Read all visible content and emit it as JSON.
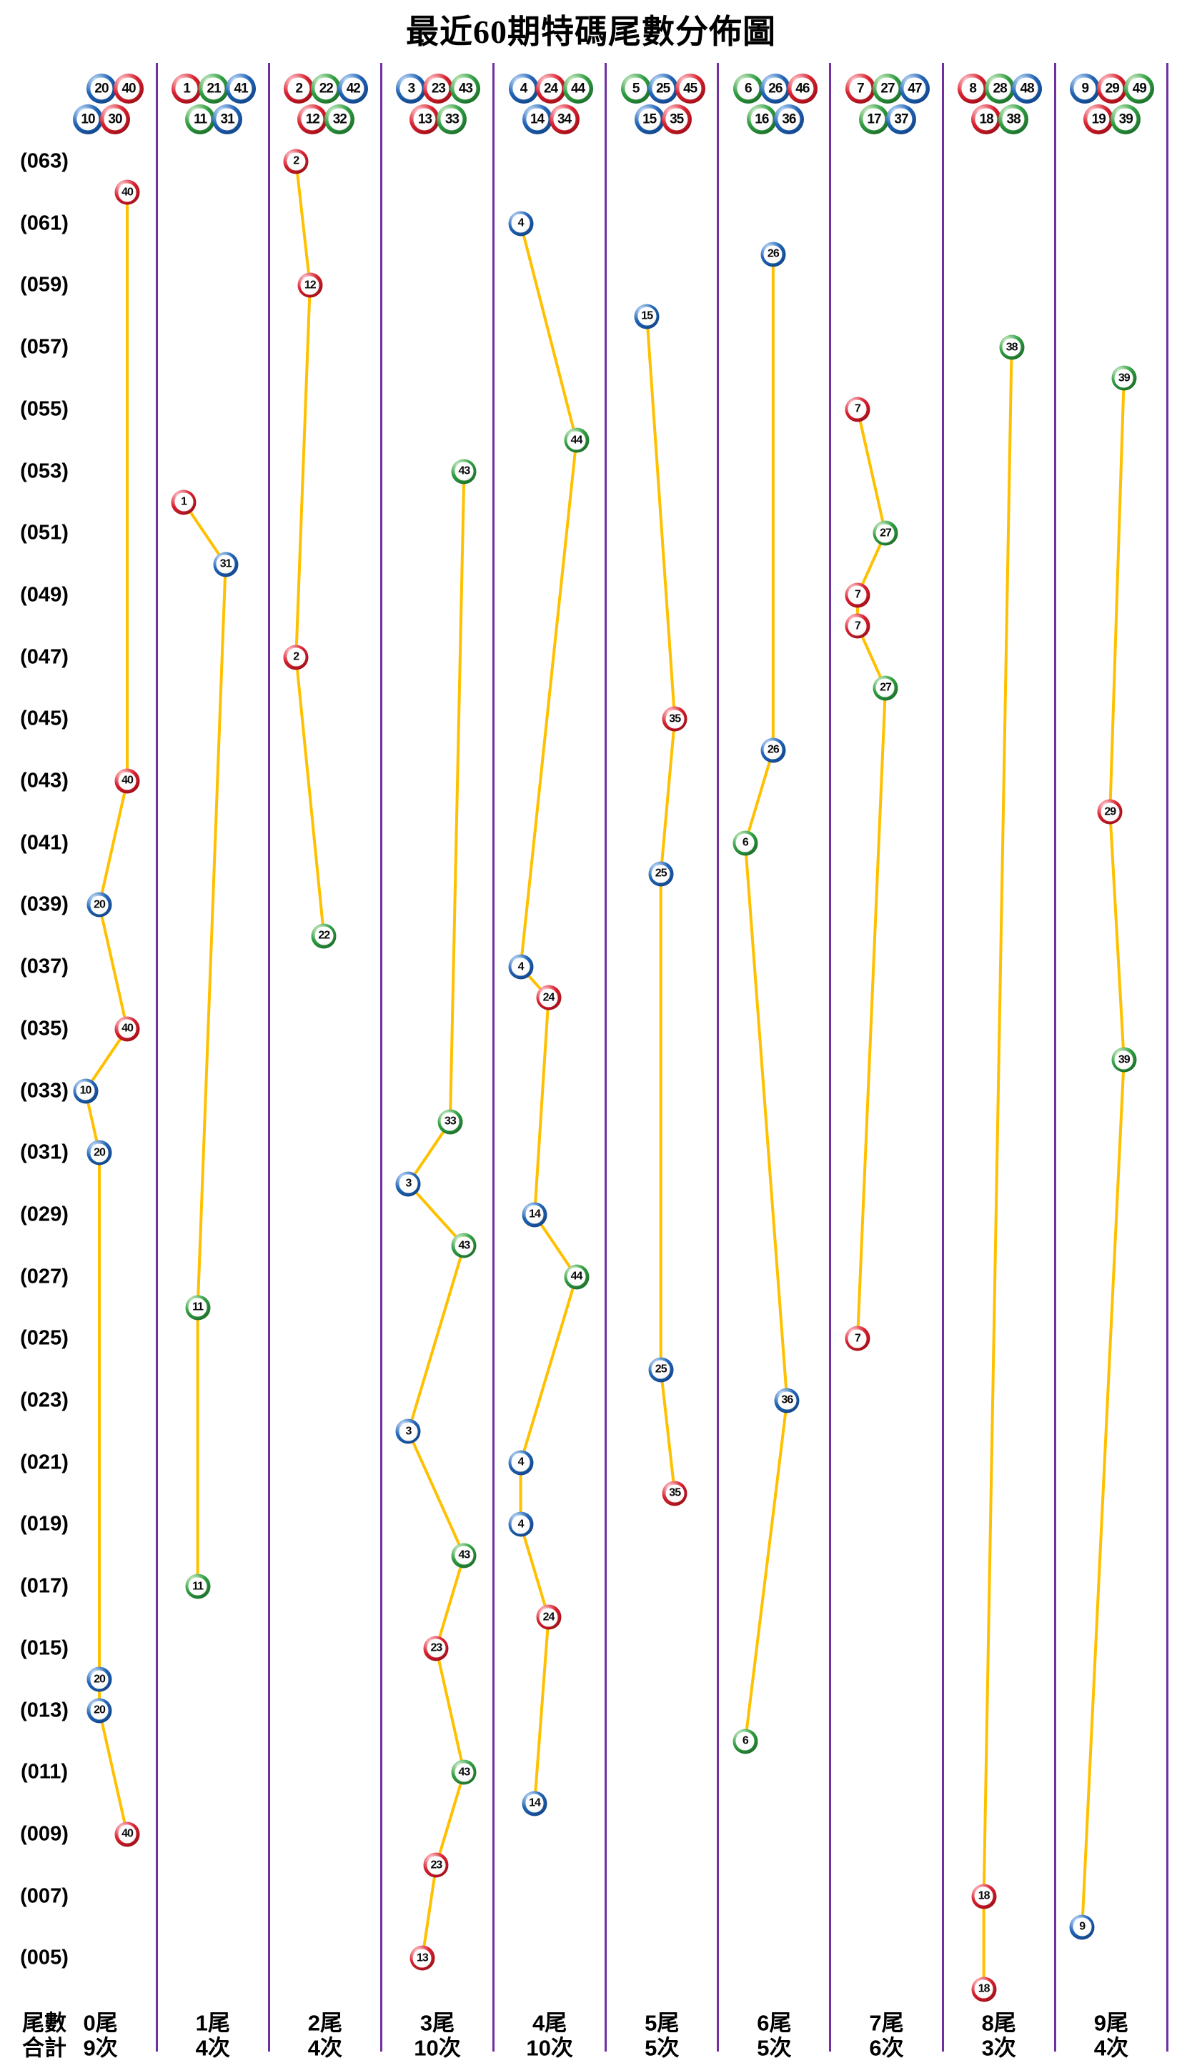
{
  "title": "最近60期特碼尾數分佈圖",
  "colors": {
    "red_ball": "#d8202e",
    "blue_ball": "#2063b5",
    "green_ball": "#2f9e41",
    "connector_line": "#ffc000",
    "column_separator": "#7030a0",
    "text": "#000000",
    "background": "#ffffff"
  },
  "y_axis": {
    "labels": [
      "(063)",
      "(061)",
      "(059)",
      "(057)",
      "(055)",
      "(053)",
      "(051)",
      "(049)",
      "(047)",
      "(045)",
      "(043)",
      "(041)",
      "(039)",
      "(037)",
      "(035)",
      "(033)",
      "(031)",
      "(029)",
      "(027)",
      "(025)",
      "(023)",
      "(021)",
      "(019)",
      "(017)",
      "(015)",
      "(013)",
      "(011)",
      "(009)",
      "(007)",
      "(005)"
    ]
  },
  "footer": {
    "tail_row_label": "尾數",
    "total_row_label": "合計"
  },
  "chart_data": {
    "type": "scatter",
    "title": "最近60期特碼尾數分佈圖",
    "x_categories": [
      "0尾",
      "1尾",
      "2尾",
      "3尾",
      "4尾",
      "5尾",
      "6尾",
      "7尾",
      "8尾",
      "9尾"
    ],
    "totals": [
      "9次",
      "4次",
      "4次",
      "10次",
      "10次",
      "5次",
      "5次",
      "6次",
      "3次",
      "4次"
    ],
    "y_range": {
      "top_period": 63,
      "bottom_period": 4,
      "tick_step": 2,
      "tick_format": "(0NN)"
    },
    "legend": "none",
    "grid": "vertical-separators-only",
    "ball_colors": {
      "red": [
        1,
        2,
        7,
        8,
        12,
        13,
        18,
        19,
        23,
        24,
        29,
        30,
        34,
        35,
        40,
        45,
        46
      ],
      "blue": [
        3,
        4,
        9,
        10,
        14,
        15,
        20,
        25,
        26,
        31,
        36,
        37,
        41,
        42,
        47,
        48
      ],
      "green": [
        5,
        6,
        11,
        16,
        17,
        21,
        22,
        27,
        28,
        32,
        33,
        38,
        39,
        43,
        44,
        49
      ]
    },
    "columns": [
      {
        "tail": "0尾",
        "total": "9次",
        "header_top": [
          20,
          40
        ],
        "header_bottom": [
          10,
          30
        ],
        "points": [
          {
            "period": 62,
            "ball": 40
          },
          {
            "period": 43,
            "ball": 40
          },
          {
            "period": 39,
            "ball": 20
          },
          {
            "period": 35,
            "ball": 40
          },
          {
            "period": 33,
            "ball": 10
          },
          {
            "period": 31,
            "ball": 20
          },
          {
            "period": 14,
            "ball": 20
          },
          {
            "period": 13,
            "ball": 20
          },
          {
            "period": 9,
            "ball": 40
          }
        ]
      },
      {
        "tail": "1尾",
        "total": "4次",
        "header_top": [
          1,
          21,
          41
        ],
        "header_bottom": [
          11,
          31
        ],
        "points": [
          {
            "period": 52,
            "ball": 1
          },
          {
            "period": 50,
            "ball": 31
          },
          {
            "period": 26,
            "ball": 11
          },
          {
            "period": 17,
            "ball": 11
          }
        ]
      },
      {
        "tail": "2尾",
        "total": "4次",
        "header_top": [
          2,
          22,
          42
        ],
        "header_bottom": [
          12,
          32
        ],
        "points": [
          {
            "period": 63,
            "ball": 2
          },
          {
            "period": 59,
            "ball": 12
          },
          {
            "period": 47,
            "ball": 2
          },
          {
            "period": 38,
            "ball": 22
          }
        ]
      },
      {
        "tail": "3尾",
        "total": "10次",
        "header_top": [
          3,
          23,
          43
        ],
        "header_bottom": [
          13,
          33
        ],
        "points": [
          {
            "period": 53,
            "ball": 43
          },
          {
            "period": 32,
            "ball": 33
          },
          {
            "period": 30,
            "ball": 3
          },
          {
            "period": 28,
            "ball": 43
          },
          {
            "period": 22,
            "ball": 3
          },
          {
            "period": 18,
            "ball": 43
          },
          {
            "period": 15,
            "ball": 23
          },
          {
            "period": 11,
            "ball": 43
          },
          {
            "period": 8,
            "ball": 23
          },
          {
            "period": 5,
            "ball": 13
          }
        ]
      },
      {
        "tail": "4尾",
        "total": "10次",
        "header_top": [
          4,
          24,
          44
        ],
        "header_bottom": [
          14,
          34
        ],
        "points": [
          {
            "period": 61,
            "ball": 4
          },
          {
            "period": 54,
            "ball": 44
          },
          {
            "period": 37,
            "ball": 4
          },
          {
            "period": 36,
            "ball": 24
          },
          {
            "period": 29,
            "ball": 14
          },
          {
            "period": 27,
            "ball": 44
          },
          {
            "period": 21,
            "ball": 4
          },
          {
            "period": 19,
            "ball": 4
          },
          {
            "period": 16,
            "ball": 24
          },
          {
            "period": 10,
            "ball": 14
          }
        ]
      },
      {
        "tail": "5尾",
        "total": "5次",
        "header_top": [
          5,
          25,
          45
        ],
        "header_bottom": [
          15,
          35
        ],
        "points": [
          {
            "period": 58,
            "ball": 15
          },
          {
            "period": 45,
            "ball": 35
          },
          {
            "period": 40,
            "ball": 25
          },
          {
            "period": 24,
            "ball": 25
          },
          {
            "period": 20,
            "ball": 35
          }
        ]
      },
      {
        "tail": "6尾",
        "total": "5次",
        "header_top": [
          6,
          26,
          46
        ],
        "header_bottom": [
          16,
          36
        ],
        "points": [
          {
            "period": 60,
            "ball": 26
          },
          {
            "period": 44,
            "ball": 26
          },
          {
            "period": 41,
            "ball": 6
          },
          {
            "period": 23,
            "ball": 36
          },
          {
            "period": 12,
            "ball": 6
          }
        ]
      },
      {
        "tail": "7尾",
        "total": "6次",
        "header_top": [
          7,
          27,
          47
        ],
        "header_bottom": [
          17,
          37
        ],
        "points": [
          {
            "period": 55,
            "ball": 7
          },
          {
            "period": 51,
            "ball": 27
          },
          {
            "period": 49,
            "ball": 7
          },
          {
            "period": 48,
            "ball": 7
          },
          {
            "period": 46,
            "ball": 27
          },
          {
            "period": 25,
            "ball": 7
          }
        ]
      },
      {
        "tail": "8尾",
        "total": "3次",
        "header_top": [
          8,
          28,
          48
        ],
        "header_bottom": [
          18,
          38
        ],
        "points": [
          {
            "period": 57,
            "ball": 38
          },
          {
            "period": 7,
            "ball": 18
          },
          {
            "period": 4,
            "ball": 18
          }
        ]
      },
      {
        "tail": "9尾",
        "total": "4次",
        "header_top": [
          9,
          29,
          49
        ],
        "header_bottom": [
          19,
          39
        ],
        "points": [
          {
            "period": 56,
            "ball": 39
          },
          {
            "period": 42,
            "ball": 29
          },
          {
            "period": 34,
            "ball": 39
          },
          {
            "period": 6,
            "ball": 9
          }
        ]
      }
    ]
  }
}
